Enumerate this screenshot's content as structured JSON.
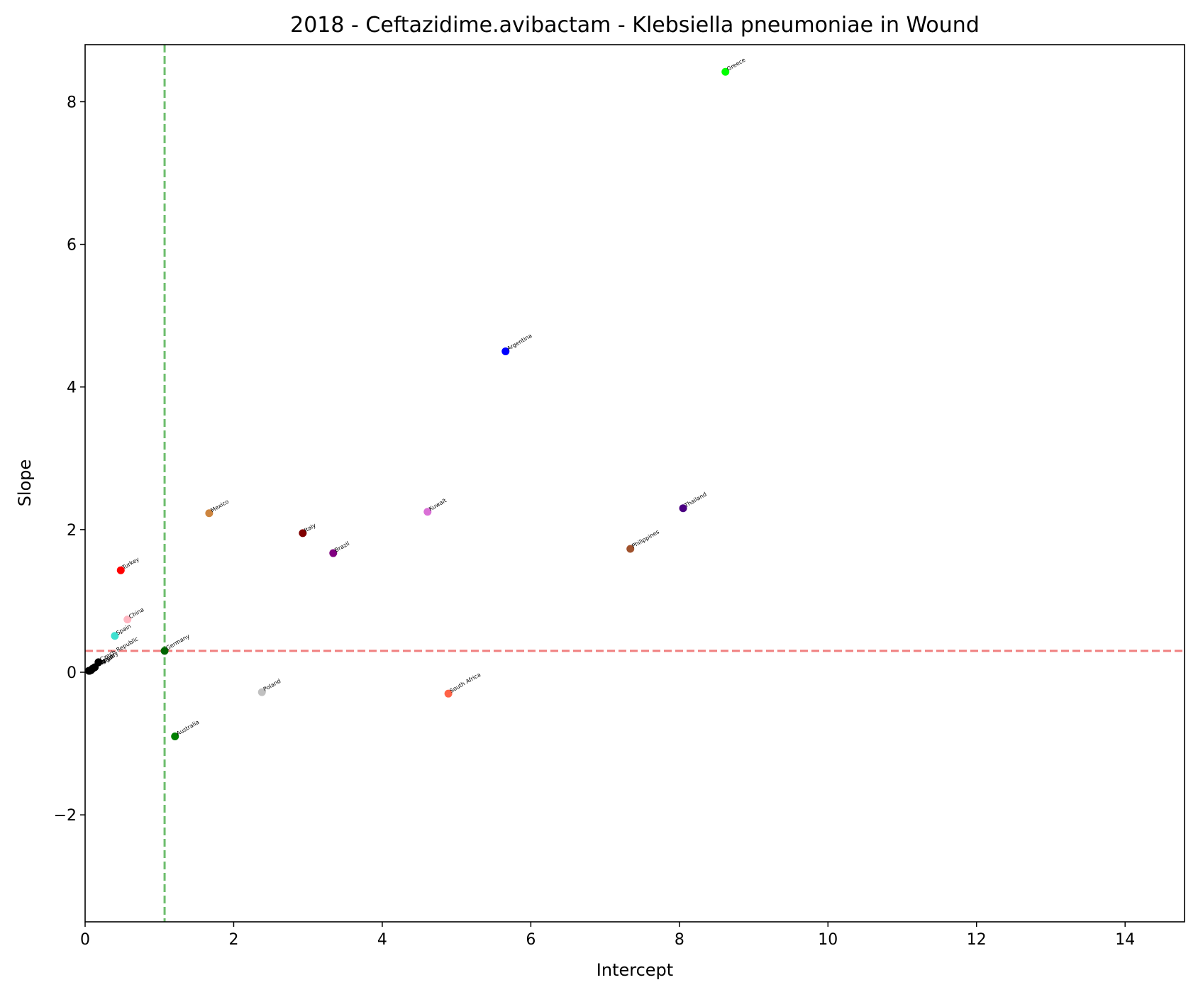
{
  "chart_data": {
    "type": "scatter",
    "title": "2018 - Ceftazidime.avibactam - Klebsiella pneumoniae in Wound",
    "xlabel": "Intercept",
    "ylabel": "Slope",
    "xlim": [
      0,
      14.8
    ],
    "ylim": [
      -3.5,
      8.8
    ],
    "xticks": [
      0,
      2,
      4,
      6,
      8,
      10,
      12,
      14
    ],
    "yticks": [
      -2,
      0,
      2,
      4,
      6,
      8
    ],
    "ytick_labels": [
      "−2",
      "0",
      "2",
      "4",
      "6",
      "8"
    ],
    "grid": false,
    "reference_lines": [
      {
        "orientation": "vertical",
        "value": 1.07,
        "color": "#6dbd6d",
        "style": "dashed"
      },
      {
        "orientation": "horizontal",
        "value": 0.3,
        "color": "#f08080",
        "style": "dashed"
      }
    ],
    "points": [
      {
        "label": "Greece",
        "x": 8.62,
        "y": 8.42,
        "color": "#00ff00"
      },
      {
        "label": "Argentina",
        "x": 5.66,
        "y": 4.5,
        "color": "#0000ff"
      },
      {
        "label": "Thailand",
        "x": 8.05,
        "y": 2.3,
        "color": "#4b0082"
      },
      {
        "label": "Kuwait",
        "x": 4.61,
        "y": 2.25,
        "color": "#da70d6"
      },
      {
        "label": "Mexico",
        "x": 1.67,
        "y": 2.23,
        "color": "#cd853f"
      },
      {
        "label": "Italy",
        "x": 2.93,
        "y": 1.95,
        "color": "#800000"
      },
      {
        "label": "Philippines",
        "x": 7.34,
        "y": 1.73,
        "color": "#a0522d"
      },
      {
        "label": "Brazil",
        "x": 3.34,
        "y": 1.67,
        "color": "#800080"
      },
      {
        "label": "Turkey",
        "x": 0.48,
        "y": 1.43,
        "color": "#ff0000"
      },
      {
        "label": "China",
        "x": 0.57,
        "y": 0.74,
        "color": "#ffb6c1"
      },
      {
        "label": "Spain",
        "x": 0.4,
        "y": 0.51,
        "color": "#40e0d0"
      },
      {
        "label": "Czech Republic",
        "x": 0.18,
        "y": 0.14,
        "color": "#000000"
      },
      {
        "label": "Germany",
        "x": 1.07,
        "y": 0.3,
        "color": "#006400"
      },
      {
        "label": "Poland",
        "x": 2.38,
        "y": -0.28,
        "color": "#c0c0c0"
      },
      {
        "label": "South Africa",
        "x": 4.89,
        "y": -0.3,
        "color": "#ff6347"
      },
      {
        "label": "Australia",
        "x": 1.21,
        "y": -0.9,
        "color": "#008000"
      },
      {
        "label": "Belgium",
        "x": 0.1,
        "y": 0.05,
        "color": "#000000"
      },
      {
        "label": "Hungary",
        "x": 0.13,
        "y": 0.07,
        "color": "#000000"
      },
      {
        "label": "Portugal",
        "x": 0.08,
        "y": 0.03,
        "color": "#000000"
      },
      {
        "label": "Israel",
        "x": 0.06,
        "y": 0.02,
        "color": "#000000"
      },
      {
        "label": "Japan",
        "x": 0.05,
        "y": 0.02,
        "color": "#000000"
      }
    ]
  }
}
